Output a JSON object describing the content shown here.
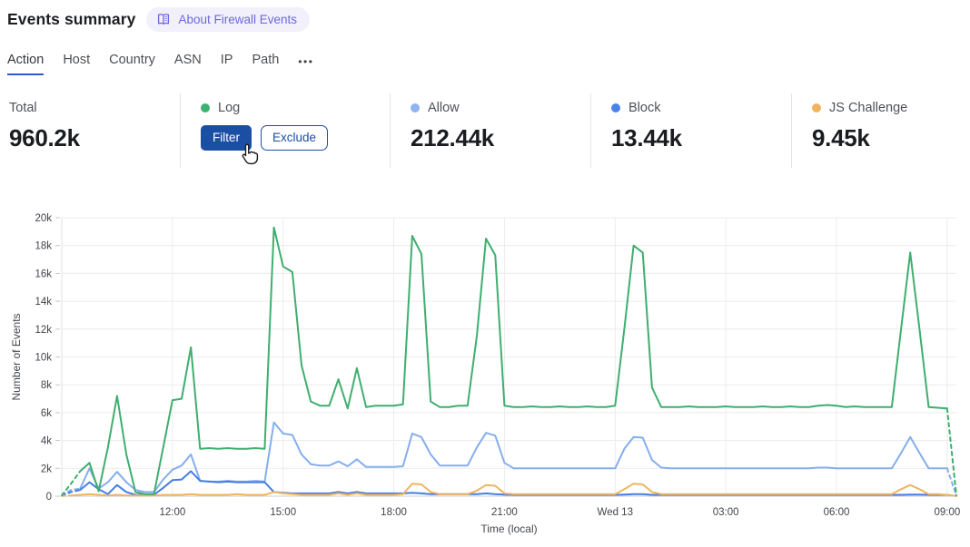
{
  "colors": {
    "accent_blue": "#2c5fc0",
    "button_blue": "#1b4fa3",
    "badge_bg": "#f1f0fb",
    "badge_text": "#6c68de",
    "divider": "#e4e4e4",
    "grid_line": "#ececec",
    "axis_line": "#cfcfcf",
    "tick_text": "#41454b"
  },
  "header": {
    "title": "Events summary",
    "badge": {
      "icon": "book-icon",
      "label": "About Firewall Events"
    }
  },
  "tabs": {
    "items": [
      {
        "label": "Action",
        "active": true
      },
      {
        "label": "Host",
        "active": false
      },
      {
        "label": "Country",
        "active": false
      },
      {
        "label": "ASN",
        "active": false
      },
      {
        "label": "IP",
        "active": false
      },
      {
        "label": "Path",
        "active": false
      }
    ],
    "more_label": "•••"
  },
  "stats": [
    {
      "label": "Total",
      "value": "960.2k"
    },
    {
      "label": "Log",
      "dot_color": "#3eb273",
      "hovered": true,
      "buttons": [
        {
          "label": "Filter",
          "variant": "primary"
        },
        {
          "label": "Exclude",
          "variant": "secondary"
        }
      ]
    },
    {
      "label": "Allow",
      "dot_color": "#8fb4f0",
      "value": "212.44k"
    },
    {
      "label": "Block",
      "dot_color": "#4a82e8",
      "value": "13.44k"
    },
    {
      "label": "JS Challenge",
      "dot_color": "#f0b45f",
      "value": "9.45k"
    }
  ],
  "chart_data": {
    "type": "line",
    "xlabel": "Time (local)",
    "ylabel": "Number of Events",
    "units": "thousands of events per 15-min interval",
    "ylim": [
      0,
      20
    ],
    "y_ticks": [
      "0",
      "2k",
      "4k",
      "6k",
      "8k",
      "10k",
      "12k",
      "14k",
      "16k",
      "18k",
      "20k"
    ],
    "x_span_hours": 24.25,
    "interval_minutes": 15,
    "x_tick_hours": [
      3,
      6,
      9,
      12,
      15,
      18,
      21,
      24
    ],
    "x_ticks": [
      "12:00",
      "15:00",
      "18:00",
      "21:00",
      "Wed 13",
      "03:00",
      "06:00",
      "09:00"
    ],
    "grid": true,
    "series": [
      {
        "name": "Log",
        "color": "#3fae6e",
        "dashed_head": 2,
        "dashed_tail": 1,
        "values": [
          0.05,
          0.9,
          1.8,
          2.4,
          0.35,
          3.5,
          7.2,
          3.0,
          0.3,
          0.15,
          0.15,
          3.5,
          6.9,
          7.0,
          10.7,
          3.4,
          3.45,
          3.4,
          3.45,
          3.4,
          3.4,
          3.45,
          3.4,
          19.3,
          16.5,
          16.1,
          9.4,
          6.8,
          6.5,
          6.5,
          8.4,
          6.3,
          9.2,
          6.4,
          6.5,
          6.5,
          6.5,
          6.6,
          18.7,
          17.4,
          6.8,
          6.4,
          6.4,
          6.5,
          6.5,
          11.5,
          18.5,
          17.3,
          6.5,
          6.4,
          6.4,
          6.45,
          6.4,
          6.4,
          6.45,
          6.4,
          6.4,
          6.45,
          6.4,
          6.4,
          6.5,
          12.0,
          18.0,
          17.5,
          7.8,
          6.4,
          6.4,
          6.4,
          6.45,
          6.4,
          6.4,
          6.4,
          6.45,
          6.4,
          6.4,
          6.4,
          6.45,
          6.4,
          6.4,
          6.45,
          6.4,
          6.4,
          6.5,
          6.55,
          6.5,
          6.4,
          6.45,
          6.4,
          6.4,
          6.4,
          6.4,
          12.0,
          17.5,
          12.0,
          6.4,
          6.35,
          6.3,
          0.05
        ]
      },
      {
        "name": "Allow",
        "color": "#85aeec",
        "dashed_head": 2,
        "dashed_tail": 1,
        "values": [
          0.05,
          0.45,
          0.55,
          2.0,
          0.55,
          1.0,
          1.75,
          1.0,
          0.45,
          0.3,
          0.3,
          1.2,
          1.9,
          2.2,
          3.0,
          1.1,
          1.05,
          1.05,
          1.1,
          1.05,
          1.05,
          1.1,
          1.05,
          5.3,
          4.5,
          4.4,
          3.0,
          2.3,
          2.2,
          2.2,
          2.5,
          2.15,
          2.65,
          2.1,
          2.1,
          2.1,
          2.1,
          2.15,
          4.5,
          4.25,
          3.0,
          2.2,
          2.2,
          2.2,
          2.2,
          3.5,
          4.55,
          4.35,
          2.4,
          2.0,
          2.0,
          2.0,
          2.0,
          2.0,
          2.0,
          2.0,
          2.0,
          2.0,
          2.0,
          2.0,
          2.0,
          3.4,
          4.25,
          4.2,
          2.6,
          2.05,
          2.0,
          2.0,
          2.0,
          2.0,
          2.0,
          2.0,
          2.0,
          2.0,
          2.0,
          2.0,
          2.0,
          2.0,
          2.0,
          2.0,
          2.0,
          2.0,
          2.05,
          2.05,
          2.0,
          2.0,
          2.0,
          2.0,
          2.0,
          2.0,
          2.0,
          3.1,
          4.25,
          3.1,
          2.0,
          2.0,
          2.0,
          0.05
        ]
      },
      {
        "name": "Block",
        "color": "#477ee0",
        "dashed_head": 2,
        "dashed_tail": 1,
        "values": [
          0.05,
          0.3,
          0.45,
          1.0,
          0.5,
          0.15,
          0.8,
          0.3,
          0.1,
          0.1,
          0.1,
          0.6,
          1.15,
          1.2,
          1.8,
          1.1,
          1.05,
          1.0,
          1.05,
          1.0,
          1.0,
          1.0,
          1.0,
          0.3,
          0.25,
          0.2,
          0.2,
          0.2,
          0.2,
          0.2,
          0.3,
          0.2,
          0.3,
          0.2,
          0.2,
          0.2,
          0.2,
          0.2,
          0.25,
          0.2,
          0.15,
          0.15,
          0.15,
          0.15,
          0.15,
          0.15,
          0.2,
          0.15,
          0.12,
          0.1,
          0.1,
          0.1,
          0.1,
          0.1,
          0.1,
          0.1,
          0.1,
          0.1,
          0.1,
          0.1,
          0.1,
          0.12,
          0.15,
          0.15,
          0.1,
          0.1,
          0.1,
          0.1,
          0.1,
          0.1,
          0.1,
          0.1,
          0.1,
          0.1,
          0.1,
          0.1,
          0.1,
          0.1,
          0.1,
          0.1,
          0.1,
          0.1,
          0.1,
          0.1,
          0.1,
          0.1,
          0.1,
          0.1,
          0.1,
          0.1,
          0.1,
          0.1,
          0.12,
          0.12,
          0.1,
          0.1,
          0.1,
          0.02
        ]
      },
      {
        "name": "JS Challenge",
        "color": "#f0b45f",
        "dashed_head": 1,
        "dashed_tail": 0,
        "values": [
          0.02,
          0.05,
          0.1,
          0.15,
          0.1,
          0.05,
          0.1,
          0.05,
          0.05,
          0.05,
          0.05,
          0.1,
          0.1,
          0.1,
          0.15,
          0.1,
          0.1,
          0.1,
          0.1,
          0.15,
          0.1,
          0.1,
          0.1,
          0.3,
          0.2,
          0.15,
          0.1,
          0.1,
          0.1,
          0.1,
          0.2,
          0.1,
          0.2,
          0.1,
          0.1,
          0.1,
          0.1,
          0.15,
          0.9,
          0.85,
          0.3,
          0.15,
          0.15,
          0.15,
          0.15,
          0.4,
          0.8,
          0.75,
          0.2,
          0.15,
          0.15,
          0.15,
          0.15,
          0.15,
          0.15,
          0.15,
          0.15,
          0.15,
          0.15,
          0.15,
          0.15,
          0.5,
          0.9,
          0.85,
          0.3,
          0.15,
          0.15,
          0.15,
          0.15,
          0.15,
          0.15,
          0.15,
          0.15,
          0.15,
          0.15,
          0.15,
          0.15,
          0.15,
          0.15,
          0.15,
          0.15,
          0.15,
          0.15,
          0.15,
          0.15,
          0.15,
          0.15,
          0.15,
          0.15,
          0.15,
          0.15,
          0.5,
          0.8,
          0.5,
          0.15,
          0.15,
          0.1,
          0.02
        ]
      }
    ]
  }
}
